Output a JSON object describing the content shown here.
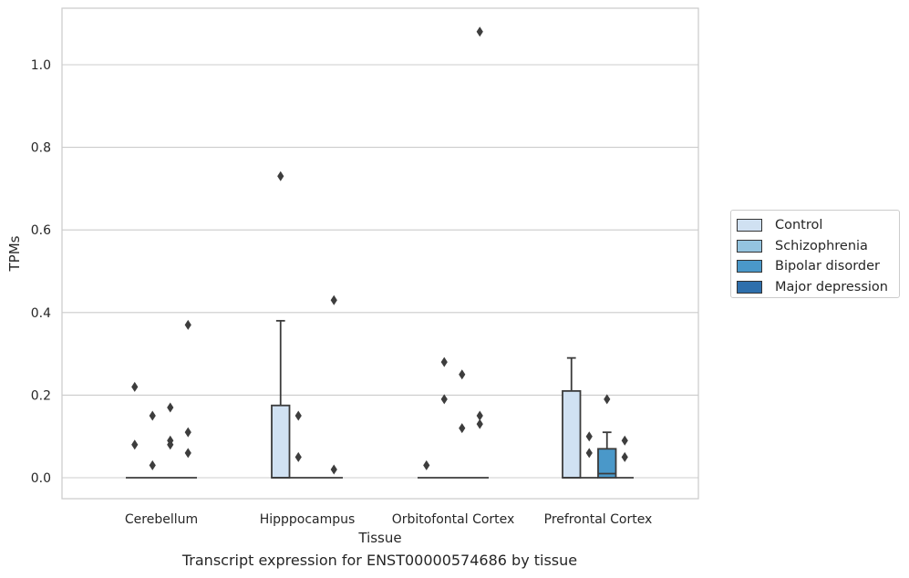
{
  "chart_data": {
    "type": "box",
    "title": "",
    "caption": "Transcript expression for ENST00000574686 by tissue",
    "xlabel": "Tissue",
    "ylabel": "TPMs",
    "ylim": [
      -0.05,
      1.14
    ],
    "yticks": [
      "0.0",
      "0.2",
      "0.4",
      "0.6",
      "0.8",
      "1.0"
    ],
    "ytick_values": [
      0.0,
      0.2,
      0.4,
      0.6,
      0.8,
      1.0
    ],
    "grid": true,
    "legend_position": "right",
    "categories": [
      "Cerebellum",
      "Hipppocampus",
      "Orbitofontal Cortex",
      "Prefrontal Cortex"
    ],
    "series": [
      {
        "name": "Control",
        "color": "#d0e1f2",
        "boxes": [
          {
            "q1": 0,
            "median": 0,
            "q3": 0,
            "whislo": 0,
            "whishi": 0,
            "fliers": [
              0.22,
              0.08
            ]
          },
          {
            "q1": 0,
            "median": 0,
            "q3": 0.175,
            "whislo": 0,
            "whishi": 0.38,
            "fliers": [
              0.73
            ]
          },
          {
            "q1": 0,
            "median": 0,
            "q3": 0,
            "whislo": 0,
            "whishi": 0,
            "fliers": [
              0.03
            ]
          },
          {
            "q1": 0,
            "median": 0,
            "q3": 0.21,
            "whislo": 0,
            "whishi": 0.29,
            "fliers": []
          }
        ]
      },
      {
        "name": "Schizophrenia",
        "color": "#94c4df",
        "boxes": [
          {
            "q1": 0,
            "median": 0,
            "q3": 0,
            "whislo": 0,
            "whishi": 0,
            "fliers": [
              0.15,
              0.03
            ]
          },
          {
            "q1": 0,
            "median": 0,
            "q3": 0,
            "whislo": 0,
            "whishi": 0,
            "fliers": [
              0.15,
              0.05
            ]
          },
          {
            "q1": 0,
            "median": 0,
            "q3": 0,
            "whislo": 0,
            "whishi": 0,
            "fliers": [
              0.28,
              0.19
            ]
          },
          {
            "q1": 0,
            "median": 0,
            "q3": 0,
            "whislo": 0,
            "whishi": 0,
            "fliers": [
              0.1,
              0.06
            ]
          }
        ]
      },
      {
        "name": "Bipolar disorder",
        "color": "#4a98c9",
        "boxes": [
          {
            "q1": 0,
            "median": 0,
            "q3": 0,
            "whislo": 0,
            "whishi": 0,
            "fliers": [
              0.17,
              0.09,
              0.08
            ]
          },
          {
            "q1": 0,
            "median": 0,
            "q3": 0,
            "whislo": 0,
            "whishi": 0,
            "fliers": []
          },
          {
            "q1": 0,
            "median": 0,
            "q3": 0,
            "whislo": 0,
            "whishi": 0,
            "fliers": [
              0.25,
              0.12
            ]
          },
          {
            "q1": 0,
            "median": 0.01,
            "q3": 0.07,
            "whislo": 0,
            "whishi": 0.11,
            "fliers": [
              0.19
            ]
          }
        ]
      },
      {
        "name": "Major depression",
        "color": "#2e6fac",
        "boxes": [
          {
            "q1": 0,
            "median": 0,
            "q3": 0,
            "whislo": 0,
            "whishi": 0,
            "fliers": [
              0.37,
              0.11,
              0.06
            ]
          },
          {
            "q1": 0,
            "median": 0,
            "q3": 0,
            "whislo": 0,
            "whishi": 0,
            "fliers": [
              0.43,
              0.02
            ]
          },
          {
            "q1": 0,
            "median": 0,
            "q3": 0,
            "whislo": 0,
            "whishi": 0,
            "fliers": [
              1.08,
              0.15,
              0.13
            ]
          },
          {
            "q1": 0,
            "median": 0,
            "q3": 0,
            "whislo": 0,
            "whishi": 0,
            "fliers": [
              0.09,
              0.05
            ]
          }
        ]
      }
    ]
  }
}
